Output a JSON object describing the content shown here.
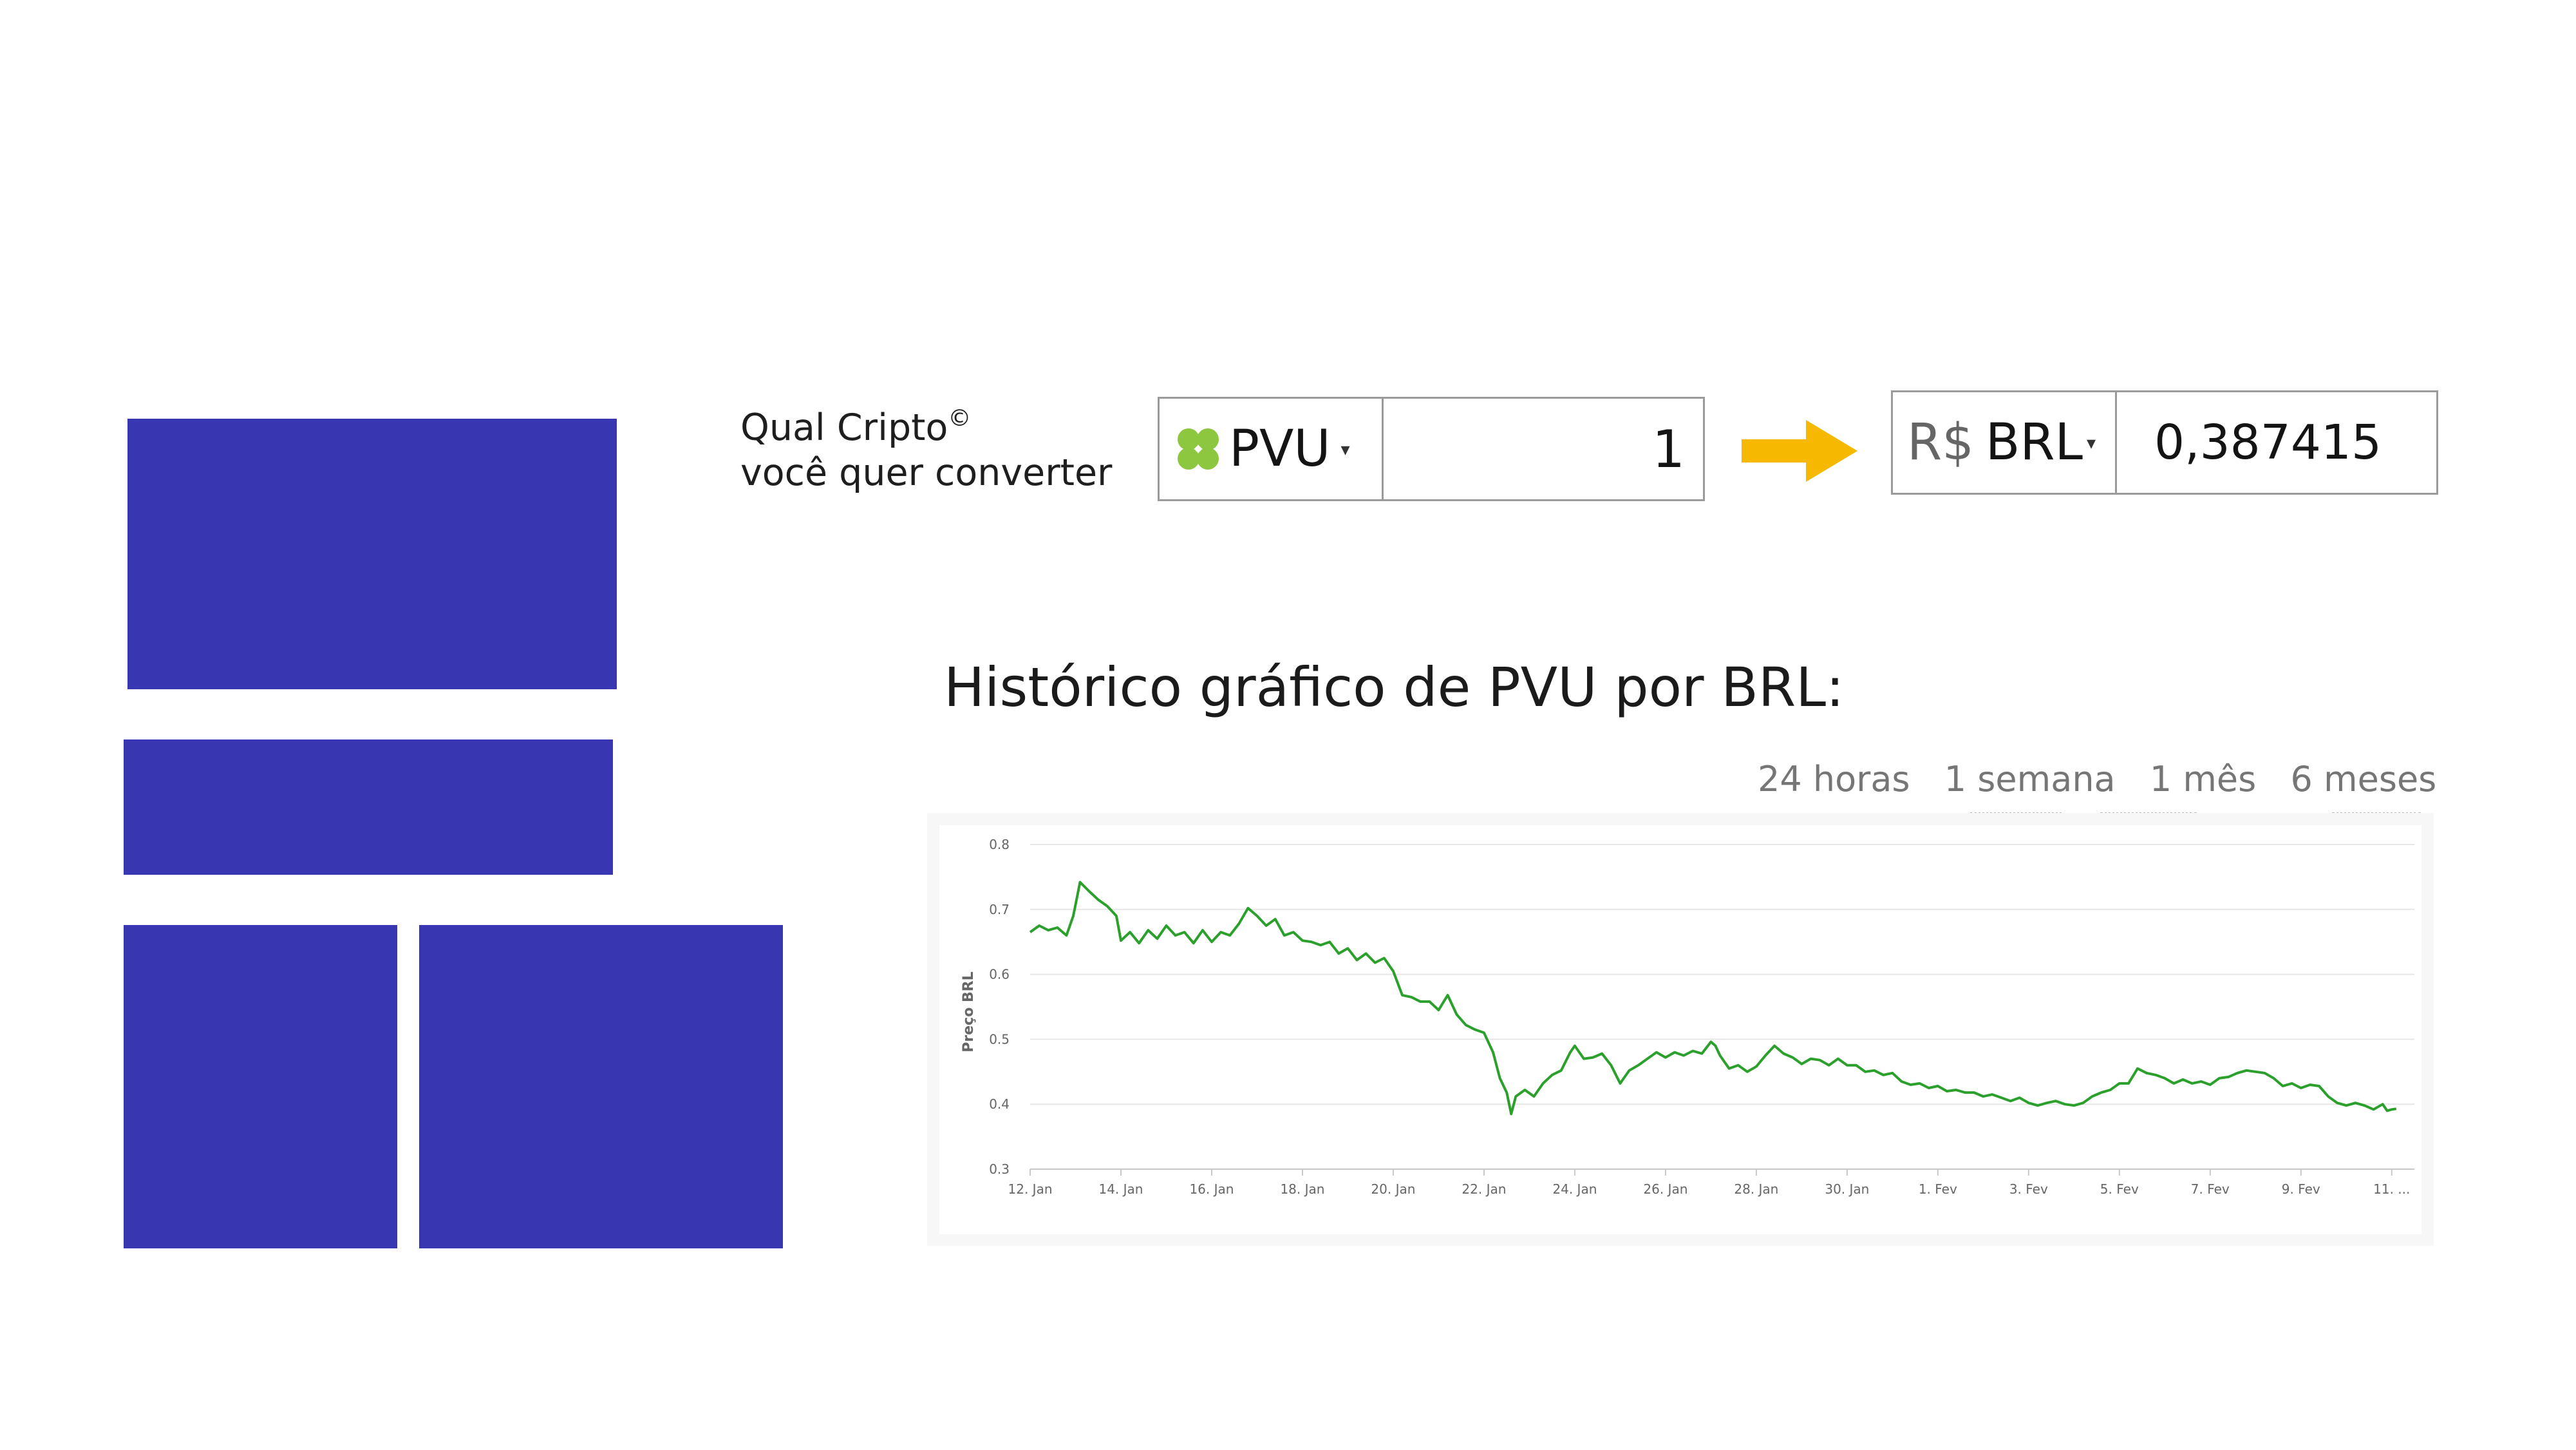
{
  "converter": {
    "prompt_line1": "Qual Cripto",
    "prompt_reg": "©",
    "prompt_line2": "você quer converter",
    "from": {
      "icon": "clover-icon",
      "icon_color": "#8dc63f",
      "ticker": "PVU",
      "caret": "▾",
      "amount": "1"
    },
    "to": {
      "symbol": "R$",
      "ticker": "BRL",
      "caret": "▾",
      "result": "0,387415"
    },
    "arrow_color": "#f6b800"
  },
  "chart_title": "Histórico gráfico de PVU por BRL:",
  "ranges": [
    "24 horas",
    "1 semana",
    "1 mês",
    "6 meses"
  ],
  "colors": {
    "block": "#3836b0",
    "line": "#2ca02c"
  },
  "chart_data": {
    "type": "line",
    "ylabel": "Preço BRL",
    "ylim": [
      0.3,
      0.8
    ],
    "yticks": [
      0.3,
      0.4,
      0.5,
      0.6,
      0.7,
      0.8
    ],
    "xlim": [
      0,
      30.5
    ],
    "xticks": [
      {
        "x": 0,
        "label": "12. Jan"
      },
      {
        "x": 2,
        "label": "14. Jan"
      },
      {
        "x": 4,
        "label": "16. Jan"
      },
      {
        "x": 6,
        "label": "18. Jan"
      },
      {
        "x": 8,
        "label": "20. Jan"
      },
      {
        "x": 10,
        "label": "22. Jan"
      },
      {
        "x": 12,
        "label": "24. Jan"
      },
      {
        "x": 14,
        "label": "26. Jan"
      },
      {
        "x": 16,
        "label": "28. Jan"
      },
      {
        "x": 18,
        "label": "30. Jan"
      },
      {
        "x": 20,
        "label": "1. Fev"
      },
      {
        "x": 22,
        "label": "3. Fev"
      },
      {
        "x": 24,
        "label": "5. Fev"
      },
      {
        "x": 26,
        "label": "7. Fev"
      },
      {
        "x": 28,
        "label": "9. Fev"
      },
      {
        "x": 30,
        "label": "11. ..."
      }
    ],
    "series": [
      {
        "points": [
          [
            0.0,
            0.665
          ],
          [
            0.2,
            0.675
          ],
          [
            0.4,
            0.668
          ],
          [
            0.6,
            0.672
          ],
          [
            0.8,
            0.66
          ],
          [
            0.95,
            0.69
          ],
          [
            1.1,
            0.742
          ],
          [
            1.3,
            0.728
          ],
          [
            1.5,
            0.715
          ],
          [
            1.7,
            0.705
          ],
          [
            1.9,
            0.69
          ],
          [
            2.0,
            0.652
          ],
          [
            2.2,
            0.665
          ],
          [
            2.4,
            0.648
          ],
          [
            2.6,
            0.668
          ],
          [
            2.8,
            0.655
          ],
          [
            3.0,
            0.675
          ],
          [
            3.2,
            0.66
          ],
          [
            3.4,
            0.665
          ],
          [
            3.6,
            0.648
          ],
          [
            3.8,
            0.668
          ],
          [
            4.0,
            0.65
          ],
          [
            4.2,
            0.665
          ],
          [
            4.4,
            0.66
          ],
          [
            4.6,
            0.678
          ],
          [
            4.8,
            0.702
          ],
          [
            5.0,
            0.69
          ],
          [
            5.2,
            0.675
          ],
          [
            5.4,
            0.685
          ],
          [
            5.6,
            0.66
          ],
          [
            5.8,
            0.665
          ],
          [
            6.0,
            0.652
          ],
          [
            6.2,
            0.65
          ],
          [
            6.4,
            0.645
          ],
          [
            6.6,
            0.65
          ],
          [
            6.8,
            0.632
          ],
          [
            7.0,
            0.64
          ],
          [
            7.2,
            0.622
          ],
          [
            7.4,
            0.632
          ],
          [
            7.6,
            0.618
          ],
          [
            7.8,
            0.625
          ],
          [
            8.0,
            0.605
          ],
          [
            8.2,
            0.568
          ],
          [
            8.4,
            0.565
          ],
          [
            8.6,
            0.558
          ],
          [
            8.8,
            0.558
          ],
          [
            9.0,
            0.545
          ],
          [
            9.2,
            0.568
          ],
          [
            9.4,
            0.538
          ],
          [
            9.6,
            0.522
          ],
          [
            9.8,
            0.515
          ],
          [
            10.0,
            0.51
          ],
          [
            10.2,
            0.48
          ],
          [
            10.35,
            0.44
          ],
          [
            10.5,
            0.418
          ],
          [
            10.6,
            0.385
          ],
          [
            10.7,
            0.412
          ],
          [
            10.9,
            0.422
          ],
          [
            11.1,
            0.412
          ],
          [
            11.3,
            0.432
          ],
          [
            11.5,
            0.445
          ],
          [
            11.7,
            0.452
          ],
          [
            11.9,
            0.48
          ],
          [
            12.0,
            0.49
          ],
          [
            12.2,
            0.47
          ],
          [
            12.4,
            0.472
          ],
          [
            12.6,
            0.478
          ],
          [
            12.8,
            0.46
          ],
          [
            13.0,
            0.432
          ],
          [
            13.2,
            0.452
          ],
          [
            13.4,
            0.46
          ],
          [
            13.6,
            0.47
          ],
          [
            13.8,
            0.48
          ],
          [
            14.0,
            0.472
          ],
          [
            14.2,
            0.48
          ],
          [
            14.4,
            0.475
          ],
          [
            14.6,
            0.482
          ],
          [
            14.8,
            0.478
          ],
          [
            15.0,
            0.496
          ],
          [
            15.1,
            0.49
          ],
          [
            15.2,
            0.475
          ],
          [
            15.4,
            0.455
          ],
          [
            15.6,
            0.46
          ],
          [
            15.8,
            0.45
          ],
          [
            16.0,
            0.458
          ],
          [
            16.2,
            0.475
          ],
          [
            16.4,
            0.49
          ],
          [
            16.6,
            0.478
          ],
          [
            16.8,
            0.472
          ],
          [
            17.0,
            0.462
          ],
          [
            17.2,
            0.47
          ],
          [
            17.4,
            0.468
          ],
          [
            17.6,
            0.46
          ],
          [
            17.8,
            0.47
          ],
          [
            18.0,
            0.46
          ],
          [
            18.2,
            0.46
          ],
          [
            18.4,
            0.45
          ],
          [
            18.6,
            0.452
          ],
          [
            18.8,
            0.445
          ],
          [
            19.0,
            0.448
          ],
          [
            19.2,
            0.435
          ],
          [
            19.4,
            0.43
          ],
          [
            19.6,
            0.432
          ],
          [
            19.8,
            0.425
          ],
          [
            20.0,
            0.428
          ],
          [
            20.2,
            0.42
          ],
          [
            20.4,
            0.422
          ],
          [
            20.6,
            0.418
          ],
          [
            20.8,
            0.418
          ],
          [
            21.0,
            0.412
          ],
          [
            21.2,
            0.415
          ],
          [
            21.4,
            0.41
          ],
          [
            21.6,
            0.405
          ],
          [
            21.8,
            0.41
          ],
          [
            22.0,
            0.402
          ],
          [
            22.2,
            0.398
          ],
          [
            22.4,
            0.402
          ],
          [
            22.6,
            0.405
          ],
          [
            22.8,
            0.4
          ],
          [
            23.0,
            0.398
          ],
          [
            23.2,
            0.402
          ],
          [
            23.4,
            0.412
          ],
          [
            23.6,
            0.418
          ],
          [
            23.8,
            0.422
          ],
          [
            24.0,
            0.432
          ],
          [
            24.2,
            0.432
          ],
          [
            24.4,
            0.455
          ],
          [
            24.6,
            0.448
          ],
          [
            24.8,
            0.445
          ],
          [
            25.0,
            0.44
          ],
          [
            25.2,
            0.432
          ],
          [
            25.4,
            0.438
          ],
          [
            25.6,
            0.432
          ],
          [
            25.8,
            0.435
          ],
          [
            26.0,
            0.43
          ],
          [
            26.2,
            0.44
          ],
          [
            26.4,
            0.442
          ],
          [
            26.6,
            0.448
          ],
          [
            26.8,
            0.452
          ],
          [
            27.0,
            0.45
          ],
          [
            27.2,
            0.448
          ],
          [
            27.4,
            0.44
          ],
          [
            27.6,
            0.428
          ],
          [
            27.8,
            0.432
          ],
          [
            28.0,
            0.425
          ],
          [
            28.2,
            0.43
          ],
          [
            28.4,
            0.428
          ],
          [
            28.6,
            0.412
          ],
          [
            28.8,
            0.402
          ],
          [
            29.0,
            0.398
          ],
          [
            29.2,
            0.402
          ],
          [
            29.4,
            0.398
          ],
          [
            29.6,
            0.392
          ],
          [
            29.8,
            0.4
          ],
          [
            29.9,
            0.39
          ],
          [
            30.0,
            0.392
          ],
          [
            30.1,
            0.393
          ]
        ]
      }
    ]
  }
}
